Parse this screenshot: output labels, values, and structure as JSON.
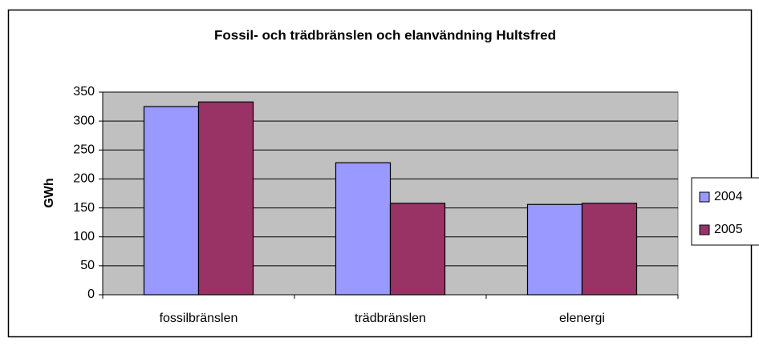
{
  "chart_data": {
    "type": "bar",
    "title": "Fossil- och trädbränslen och elanvändning Hultsfred",
    "y_label": "GWh",
    "categories": [
      "fossilbränslen",
      "trädbränslen",
      "elenergi"
    ],
    "series": [
      {
        "name": "2004",
        "color": "#9999ff",
        "values": [
          325,
          228,
          156
        ]
      },
      {
        "name": "2005",
        "color": "#993366",
        "values": [
          333,
          158,
          158
        ]
      }
    ],
    "ylim": [
      0,
      350
    ],
    "yticks": [
      0,
      50,
      100,
      150,
      200,
      250,
      300,
      350
    ],
    "grid": true,
    "legend": "right"
  }
}
